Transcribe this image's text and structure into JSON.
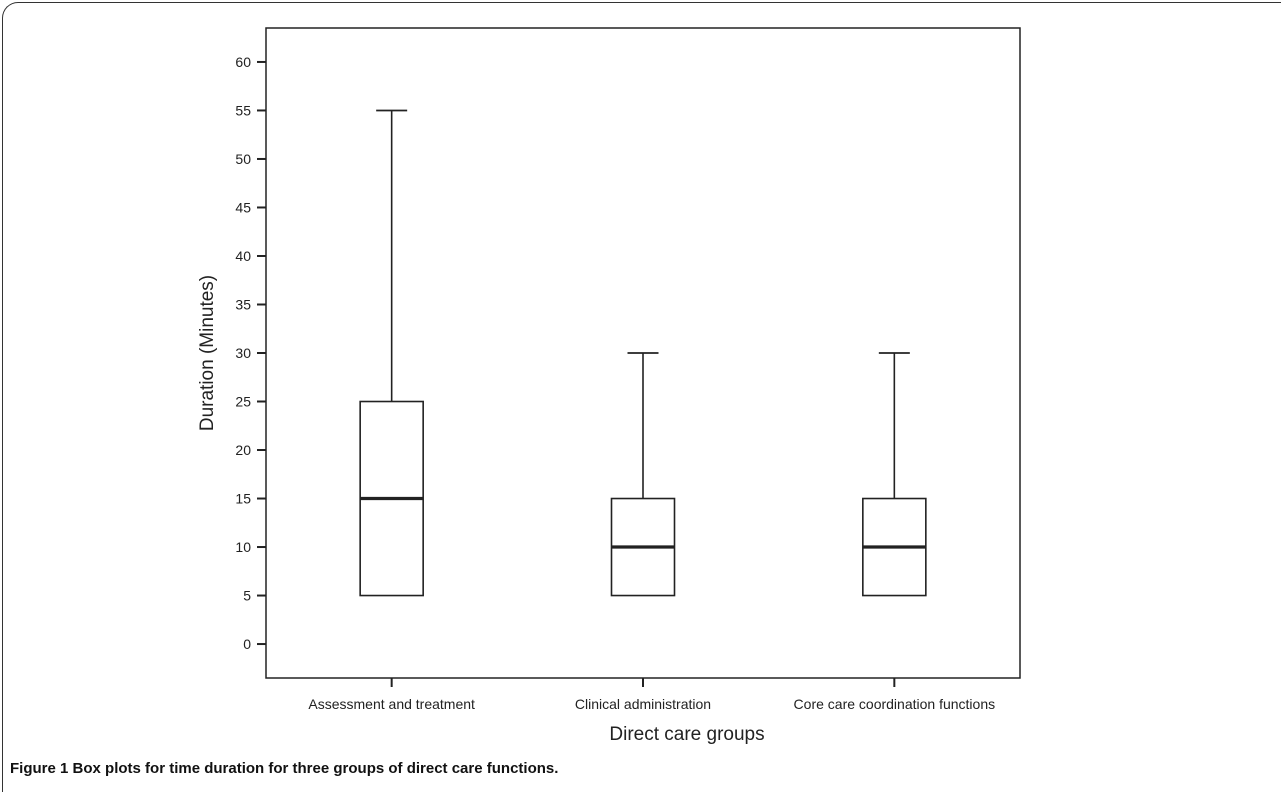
{
  "caption": {
    "label": "Figure 1",
    "text": "Box plots for time duration for three groups of direct care functions."
  },
  "chart_data": {
    "type": "boxplot",
    "xlabel": "Direct care groups",
    "ylabel": "Duration (Minutes)",
    "ylim": [
      -3.5,
      63.5
    ],
    "yticks": [
      0,
      5,
      10,
      15,
      20,
      25,
      30,
      35,
      40,
      45,
      50,
      55,
      60
    ],
    "grid": false,
    "categories": [
      "Assessment and treatment",
      "Clinical administration",
      "Core care coordination functions"
    ],
    "boxes": [
      {
        "category": "Assessment and treatment",
        "min": 5,
        "q1": 5,
        "median": 15,
        "q3": 25,
        "max": 55
      },
      {
        "category": "Clinical administration",
        "min": 5,
        "q1": 5,
        "median": 10,
        "q3": 15,
        "max": 30
      },
      {
        "category": "Core care coordination functions",
        "min": 5,
        "q1": 5,
        "median": 10,
        "q3": 15,
        "max": 30
      }
    ],
    "colors": {
      "stroke": "#222222",
      "fill": "#ffffff"
    }
  }
}
